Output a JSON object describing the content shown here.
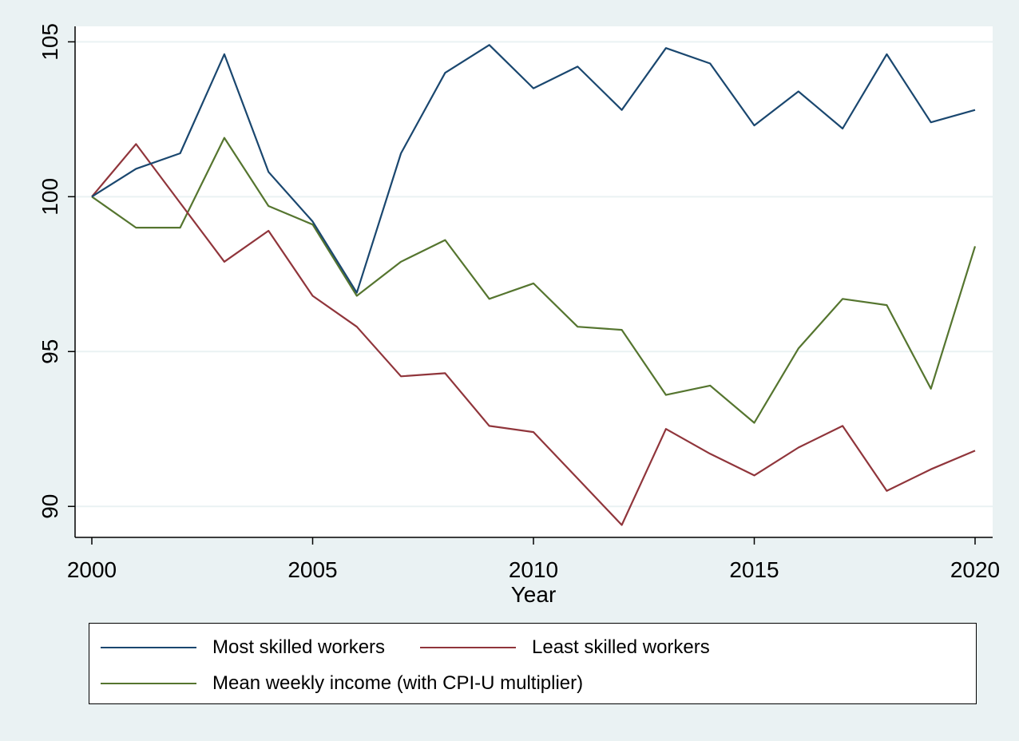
{
  "chart_data": {
    "type": "line",
    "xlabel": "Year",
    "ylabel": "",
    "xlim": [
      2000,
      2020
    ],
    "ylim": [
      89,
      105.5
    ],
    "x_ticks": [
      "2000",
      "2005",
      "2010",
      "2015",
      "2020"
    ],
    "y_ticks": [
      "90",
      "95",
      "100",
      "105"
    ],
    "grid": true,
    "legend_position": "bottom",
    "x": [
      2000,
      2001,
      2002,
      2003,
      2004,
      2005,
      2006,
      2007,
      2008,
      2009,
      2010,
      2011,
      2012,
      2013,
      2014,
      2015,
      2016,
      2017,
      2018,
      2019,
      2020
    ],
    "series": [
      {
        "name": "Most skilled workers",
        "color": "#1a476f",
        "values": [
          100.0,
          100.9,
          101.4,
          104.6,
          100.8,
          99.2,
          96.9,
          101.4,
          104.0,
          104.9,
          103.5,
          104.2,
          102.8,
          104.8,
          104.3,
          102.3,
          103.4,
          102.2,
          104.6,
          102.4,
          102.8
        ]
      },
      {
        "name": "Least skilled workers",
        "color": "#90353b",
        "values": [
          100.0,
          101.7,
          99.8,
          97.9,
          98.9,
          96.8,
          95.8,
          94.2,
          94.3,
          92.6,
          92.4,
          90.9,
          89.4,
          92.5,
          91.7,
          91.0,
          91.9,
          92.6,
          90.5,
          91.2,
          91.8
        ]
      },
      {
        "name": "Mean weekly income (with CPI-U multiplier)",
        "color": "#55752f",
        "values": [
          100.0,
          99.0,
          99.0,
          101.9,
          99.7,
          99.1,
          96.8,
          97.9,
          98.6,
          96.7,
          97.2,
          95.8,
          95.7,
          93.6,
          93.9,
          92.7,
          95.1,
          96.7,
          96.5,
          93.8,
          98.4
        ]
      }
    ]
  }
}
